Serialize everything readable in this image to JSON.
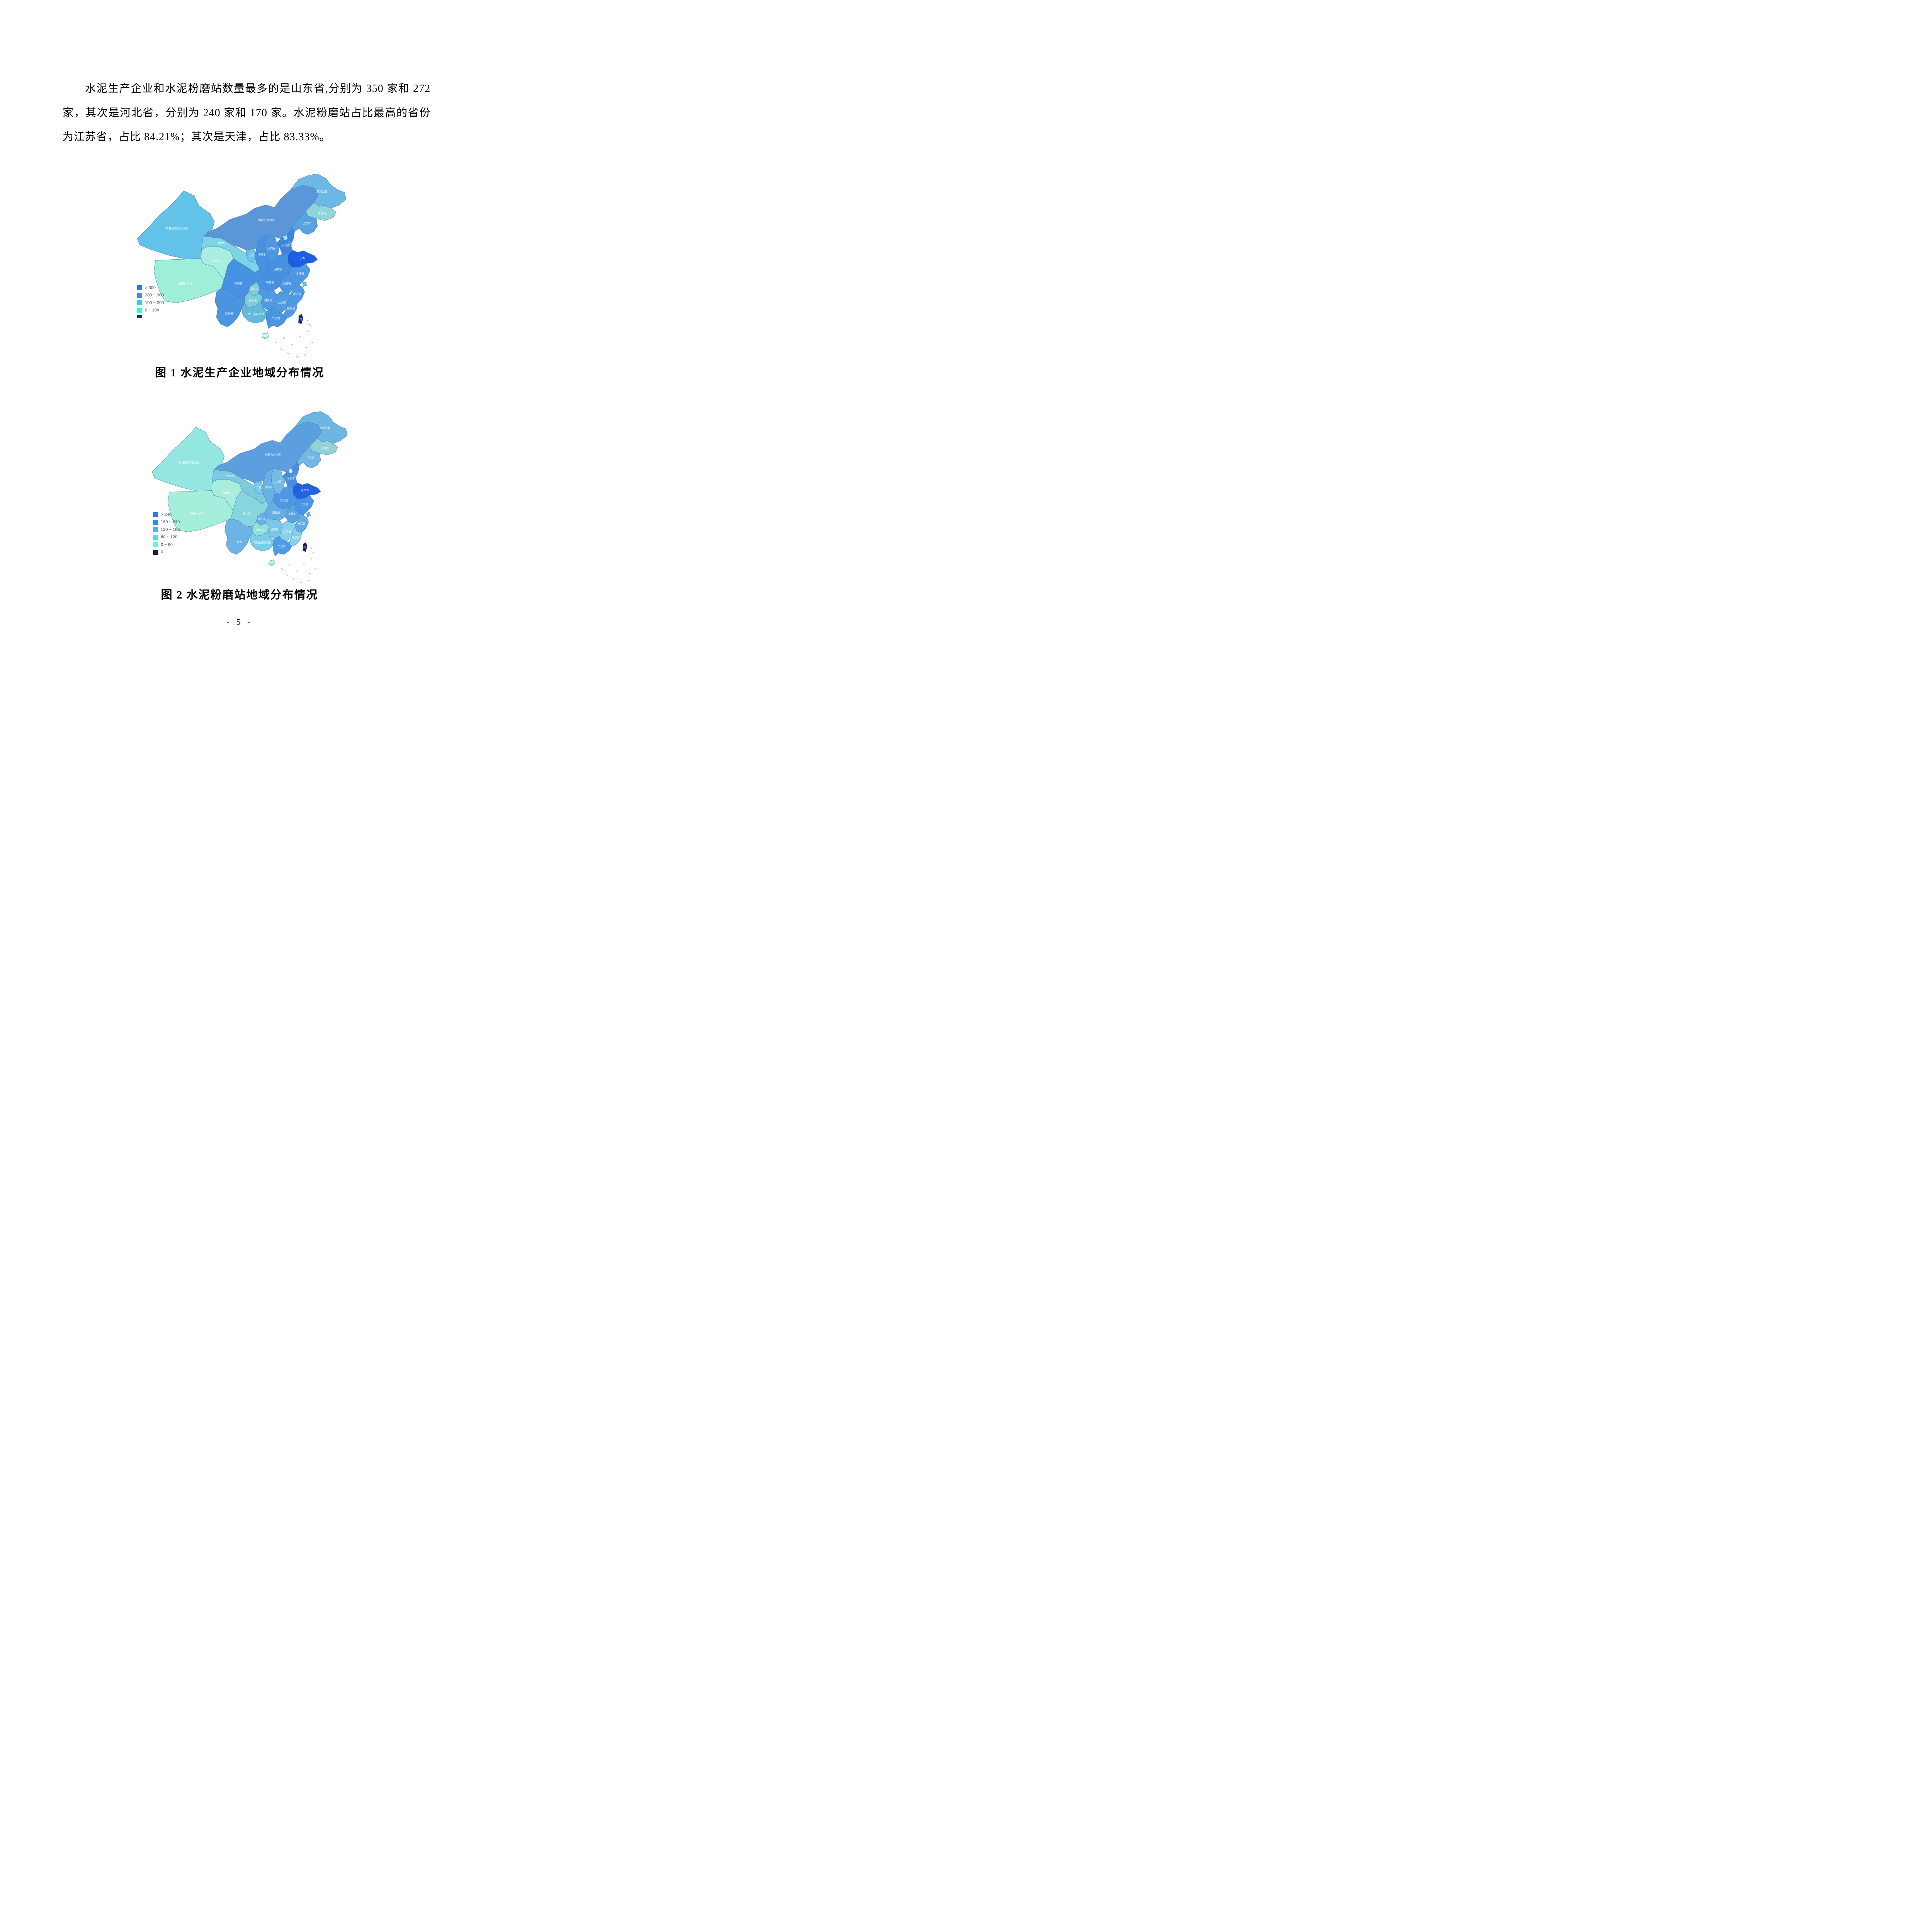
{
  "page": {
    "number": "- 5 -"
  },
  "paragraph": {
    "lines": [
      "水泥生产企业和水泥粉磨站数量最多的是山东省,分别为 350 家和 272",
      "家，其次是河北省，分别为 240 家和 170 家。水泥粉磨站占比最高的省份",
      "为江苏省，占比 84.21%；其次是天津，占比 83.33%。"
    ]
  },
  "map": {
    "border_color": "#4a7fb5",
    "island_color": "#8a93a8",
    "label_color": "#ffffff"
  },
  "figures": [
    {
      "caption": "图 1 水泥生产企业地域分布情况",
      "legend": [
        {
          "color": "#2b76e8",
          "label": "> 300"
        },
        {
          "color": "#3b8ef0",
          "label": "200 ~ 300"
        },
        {
          "color": "#3fc8f0",
          "label": "100 ~ 200"
        },
        {
          "color": "#4deec6",
          "label": "0 ~ 100"
        },
        {
          "color": "#1b2f66",
          "label": "",
          "truncated": true
        }
      ],
      "region_fills": {
        "xinjiang": "#63c2e8",
        "xizang": "#9feeda",
        "qinghai": "#a9efe0",
        "gansu": "#7cd4e6",
        "neimenggu": "#5b97d8",
        "heilongjiang": "#6db9e6",
        "jilin": "#8fd6da",
        "liaoning": "#57a3e0",
        "ningxia": "#6fc2e8",
        "shaanxi": "#4890e2",
        "shanxi": "#4d96e4",
        "hebei": "#3c86e0",
        "beijing": "#a5ddf0",
        "tianjin": "#4f96e4",
        "shandong": "#1b5fe0",
        "henan": "#4890e2",
        "hubei": "#4890e2",
        "sichuan": "#4693e4",
        "chongqing": "#84ccd8",
        "guizhou": "#7cccdc",
        "hunan": "#4f9ae2",
        "jiangxi": "#4f9ce2",
        "anhui": "#4f96e4",
        "jiangsu": "#4f98e4",
        "shanghai": "#6fc0e8",
        "zhejiang": "#4e9ae2",
        "fujian": "#4f9ce4",
        "yunnan": "#4a94e0",
        "guangxi": "#63b8dc",
        "guangdong": "#4896e0",
        "hainan": "#9aeedd",
        "taiwan": "#1a2a5e"
      }
    },
    {
      "caption": "图 2 水泥粉磨站地域分布情况",
      "legend": [
        {
          "color": "#2b76e8",
          "label": "> 240"
        },
        {
          "color": "#308af0",
          "label": "180 ~ 240"
        },
        {
          "color": "#49b4ee",
          "label": "120 ~ 180"
        },
        {
          "color": "#55d8f0",
          "label": "60 ~ 120"
        },
        {
          "color": "#70f5d2",
          "label": "0 ~ 60"
        },
        {
          "color": "#131c4e",
          "label": "0"
        }
      ],
      "region_fills": {
        "xinjiang": "#93e6e2",
        "xizang": "#a5eedb",
        "qinghai": "#a9eedd",
        "gansu": "#7ccade",
        "neimenggu": "#5b9fde",
        "heilongjiang": "#6cb6e2",
        "jilin": "#93d2d8",
        "liaoning": "#71b8e4",
        "ningxia": "#7cc8e8",
        "shaanxi": "#6ab0e4",
        "shanxi": "#74bce4",
        "hebei": "#478ee2",
        "beijing": "#cfeef8",
        "tianjin": "#57a5e6",
        "shandong": "#2263dd",
        "henan": "#4f98e2",
        "hubei": "#65aee4",
        "sichuan": "#86d6de",
        "chongqing": "#6ab0e4",
        "guizhou": "#93e0da",
        "hunan": "#79c6e6",
        "jiangxi": "#8ad2ec",
        "anhui": "#5ca3e2",
        "jiangsu": "#4a94e6",
        "shanghai": "#6ab0e4",
        "zhejiang": "#62ace4",
        "fujian": "#85cfec",
        "yunnan": "#6bb4e4",
        "guangxi": "#7ccde8",
        "guangdong": "#509ce4",
        "hainan": "#9ceed8",
        "taiwan": "#141c4c"
      }
    }
  ],
  "region_labels": {
    "xinjiang": "新疆维吾尔自治区",
    "xizang": "西藏自治区",
    "qinghai": "青海省",
    "gansu": "甘肃省",
    "neimenggu": "内蒙古自治区",
    "heilongjiang": "黑龙江省",
    "jilin": "吉林省",
    "liaoning": "辽宁省",
    "ningxia": "宁夏",
    "shaanxi": "陕西省",
    "shanxi": "山西省",
    "hebei": "河北省",
    "shandong": "山东省",
    "henan": "河南省",
    "jiangsu": "江苏省",
    "anhui": "安徽省",
    "hubei": "湖北省",
    "zhejiang": "浙江省",
    "jiangxi": "江西省",
    "hunan": "湖南省",
    "sichuan": "四川省",
    "chongqing": "重庆市",
    "guizhou": "贵州省",
    "yunnan": "云南省",
    "guangxi": "广西壮族自治区",
    "guangdong": "广东省",
    "fujian": "福建省",
    "hainan": "海南省",
    "taiwan": "台湾省"
  }
}
